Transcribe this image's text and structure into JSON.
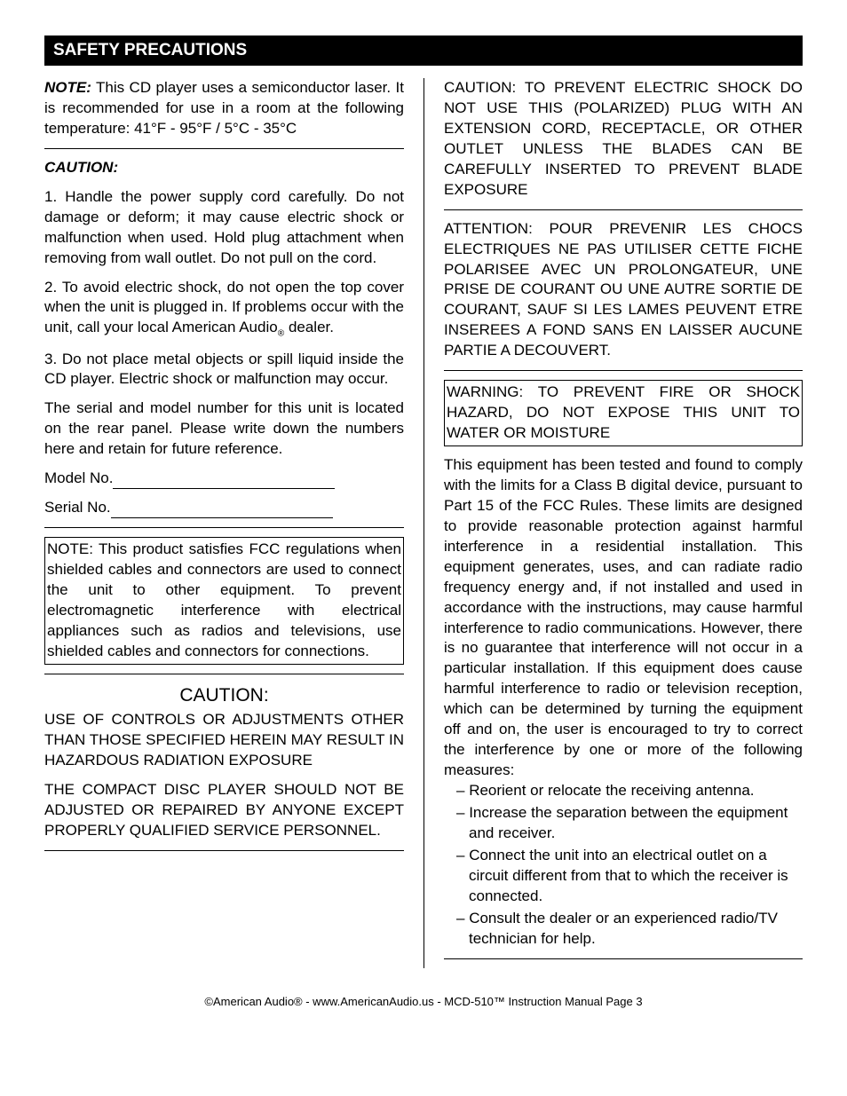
{
  "header": {
    "title": "SAFETY PRECAUTIONS"
  },
  "left": {
    "note_label": "NOTE:",
    "note_text": " This CD player uses a semiconductor laser.  It is recommended for use in a room at the following temperature: 41°F - 95°F / 5°C - 35°C",
    "caution_label": "CAUTION:",
    "c1": "1. Handle the power supply cord carefully.  Do not damage or deform; it may cause electric shock or malfunction when used. Hold plug attachment when removing from wall outlet. Do not pull on the cord.",
    "c2_a": "2. To avoid electric shock, do not open the top cover when the unit is plugged in.  If problems occur with the unit, call your local American Audio",
    "c2_b": " dealer.",
    "c3": "3. Do not place metal objects or spill liquid inside the CD player. Electric shock or malfunction may occur.",
    "serial_para": "The serial and model number for this unit is located on the rear panel. Please write down the numbers here and retain for future reference.",
    "model_label": "Model No.",
    "serial_label": "Serial No.",
    "fcc_box": "NOTE: This product satisfies FCC regulations when shielded cables and connectors are used to connect the unit to other equipment. To prevent electromagnetic interference with electrical appliances such as radios and televisions, use shielded cables and connectors for connections.",
    "caution_center": "CAUTION:",
    "caution_block1": "USE OF CONTROLS OR ADJUSTMENTS OTHER THAN THOSE SPECIFIED HEREIN MAY RESULT IN HAZARDOUS RADIATION EXPOSURE",
    "caution_block2": "THE COMPACT DISC PLAYER SHOULD NOT BE ADJUSTED OR REPAIRED BY ANYONE EXCEPT PROPERLY QUALIFIED SERVICE PERSONNEL."
  },
  "right": {
    "shock_en": "CAUTION: TO PREVENT ELECTRIC SHOCK DO NOT USE THIS (POLARIZED) PLUG WITH AN EXTENSION CORD, RECEPTACLE, OR OTHER OUTLET UNLESS THE BLADES CAN BE CAREFULLY INSERTED TO PREVENT BLADE EXPOSURE",
    "shock_fr": "ATTENTION: POUR PREVENIR LES CHOCS ELECTRIQUES NE PAS UTILISER CETTE FICHE POLARISEE AVEC UN PROLONGATEUR, UNE PRISE DE COURANT OU UNE AUTRE SORTIE DE COURANT, SAUF SI LES LAMES PEUVENT ETRE INSEREES A FOND SANS EN LAISSER AUCUNE PARTIE A DECOUVERT.",
    "warning_box": "WARNING: TO PREVENT FIRE OR SHOCK HAZARD, DO NOT EXPOSE THIS UNIT TO WATER OR MOISTURE",
    "fcc_long": "This equipment has been tested and found to comply with the limits for a Class B digital device, pursuant to Part 15 of the FCC Rules. These limits are designed to provide reasonable protection against harmful interference in a residential installation. This equipment generates, uses, and can radiate radio frequency energy and, if not installed and used in accordance with the instructions, may cause harmful interference to radio communications. However, there is no guarantee that interference will not occur in a particular installation. If this equipment does cause harmful interference to radio or television reception, which can be determined by turning the equipment off and on, the user is encouraged to try to correct the interference by one or more of the following measures:",
    "m1": "Reorient or relocate the receiving antenna.",
    "m2": "Increase the separation between the equipment and receiver.",
    "m3": "Connect the unit into an electrical outlet on a circuit different from that to which the receiver is connected.",
    "m4": "Consult the dealer or an experienced radio/TV technician for help."
  },
  "footer": {
    "text": "©American Audio®   -   www.AmericanAudio.us   -   MCD-510™ Instruction Manual Page 3"
  }
}
